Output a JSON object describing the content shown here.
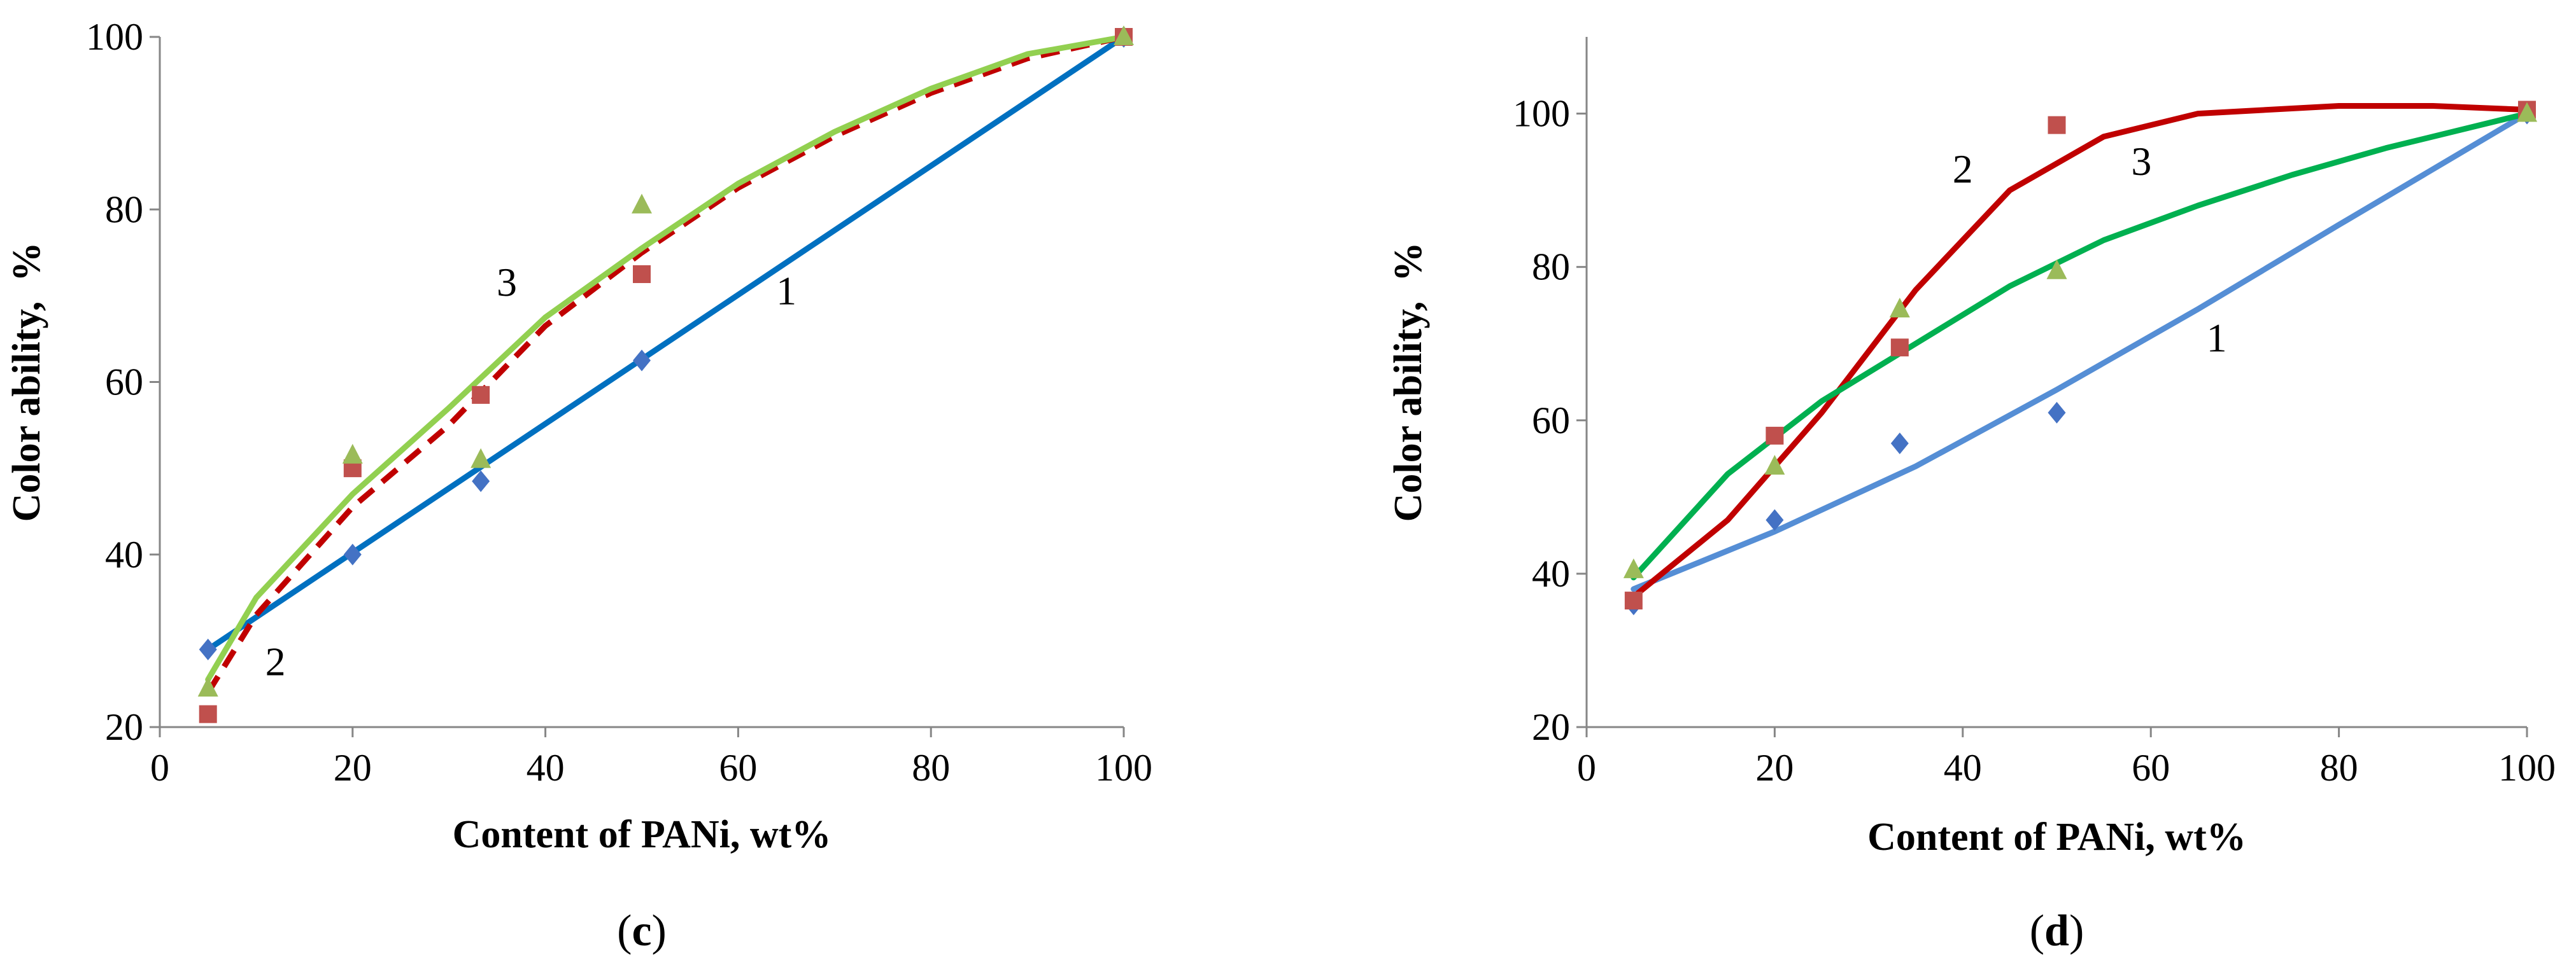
{
  "chart_data": [
    {
      "type": "scatter",
      "panel": "(c)",
      "caption_open": "(",
      "caption_letter": "c",
      "caption_close": ")",
      "xlabel": "Content of PANi, wt%",
      "ylabel": "Color ability,  %",
      "xlim": [
        0,
        100
      ],
      "ylim": [
        20,
        100
      ],
      "xticks": [
        0,
        20,
        40,
        60,
        80,
        100
      ],
      "yticks": [
        20,
        40,
        60,
        80,
        100
      ],
      "grid": false,
      "series": [
        {
          "name": "1",
          "marker": "diamond",
          "color": "#4472c4",
          "trend_color": "#0070c0",
          "trend_style": "solid",
          "points": [
            [
              5,
              29
            ],
            [
              20,
              40
            ],
            [
              33.3,
              48.5
            ],
            [
              50,
              62.5
            ],
            [
              100,
              100
            ]
          ],
          "trend": [
            [
              5,
              29
            ],
            [
              100,
              100
            ]
          ],
          "label": "1",
          "label_at": [
            65,
            69
          ]
        },
        {
          "name": "2",
          "marker": "square",
          "color": "#c0504d",
          "trend_color": "#c00000",
          "trend_style": "dashed",
          "points": [
            [
              5,
              21.5
            ],
            [
              20,
              50
            ],
            [
              33.3,
              58.5
            ],
            [
              50,
              72.5
            ],
            [
              100,
              100
            ]
          ],
          "trend": [
            [
              5,
              24
            ],
            [
              10,
              33
            ],
            [
              20,
              45.5
            ],
            [
              30,
              55
            ],
            [
              40,
              66.5
            ],
            [
              50,
              75
            ],
            [
              60,
              82.5
            ],
            [
              70,
              88.5
            ],
            [
              80,
              93.5
            ],
            [
              90,
              97.5
            ],
            [
              100,
              100
            ]
          ],
          "label": "2",
          "label_at": [
            12,
            26
          ]
        },
        {
          "name": "3",
          "marker": "triangle",
          "color": "#9bbb59",
          "trend_color": "#92d050",
          "trend_style": "solid",
          "points": [
            [
              5,
              24.5
            ],
            [
              20,
              51.5
            ],
            [
              33.3,
              51
            ],
            [
              50,
              80.5
            ],
            [
              100,
              100
            ]
          ],
          "trend": [
            [
              5,
              25.5
            ],
            [
              10,
              35
            ],
            [
              20,
              47
            ],
            [
              30,
              57
            ],
            [
              40,
              67.5
            ],
            [
              50,
              75.5
            ],
            [
              60,
              83
            ],
            [
              70,
              89
            ],
            [
              80,
              94
            ],
            [
              90,
              98
            ],
            [
              100,
              100
            ]
          ],
          "label": "3",
          "label_at": [
            36,
            70
          ]
        }
      ]
    },
    {
      "type": "scatter",
      "panel": "(d)",
      "caption_open": "(",
      "caption_letter": "d",
      "caption_close": ")",
      "xlabel": "Content of PANi, wt%",
      "ylabel": "Color ability,  %",
      "xlim": [
        0,
        100
      ],
      "ylim": [
        20,
        110
      ],
      "xticks": [
        0,
        20,
        40,
        60,
        80,
        100
      ],
      "yticks": [
        20,
        40,
        60,
        80,
        100
      ],
      "grid": false,
      "series": [
        {
          "name": "1",
          "marker": "diamond",
          "color": "#4472c4",
          "trend_color": "#558ed5",
          "trend_style": "solid",
          "points": [
            [
              5,
              36
            ],
            [
              20,
              47
            ],
            [
              33.3,
              57
            ],
            [
              50,
              61
            ],
            [
              100,
              100
            ]
          ],
          "trend": [
            [
              5,
              38
            ],
            [
              20,
              45.5
            ],
            [
              35,
              54
            ],
            [
              50,
              64
            ],
            [
              65,
              74.5
            ],
            [
              80,
              85.5
            ],
            [
              100,
              100
            ]
          ],
          "label": "1",
          "label_at": [
            67,
            69
          ]
        },
        {
          "name": "2",
          "marker": "square",
          "color": "#c0504d",
          "trend_color": "#c00000",
          "trend_style": "solid",
          "points": [
            [
              5,
              36.5
            ],
            [
              20,
              58
            ],
            [
              33.3,
              69.5
            ],
            [
              50,
              98.5
            ],
            [
              100,
              100.5
            ]
          ],
          "trend": [
            [
              5,
              37
            ],
            [
              15,
              47
            ],
            [
              25,
              61
            ],
            [
              35,
              77
            ],
            [
              45,
              90
            ],
            [
              55,
              97
            ],
            [
              65,
              100
            ],
            [
              80,
              101
            ],
            [
              90,
              101
            ],
            [
              100,
              100.5
            ]
          ],
          "label": "2",
          "label_at": [
            40,
            91
          ]
        },
        {
          "name": "3",
          "marker": "triangle",
          "color": "#9bbb59",
          "trend_color": "#00b050",
          "trend_style": "solid",
          "points": [
            [
              5,
              40.5
            ],
            [
              20,
              54
            ],
            [
              33.3,
              74.5
            ],
            [
              50,
              79.5
            ],
            [
              100,
              100
            ]
          ],
          "trend": [
            [
              5,
              39.5
            ],
            [
              15,
              53
            ],
            [
              25,
              62.5
            ],
            [
              35,
              70
            ],
            [
              45,
              77.5
            ],
            [
              55,
              83.5
            ],
            [
              65,
              88
            ],
            [
              75,
              92
            ],
            [
              85,
              95.5
            ],
            [
              100,
              100
            ]
          ],
          "label": "3",
          "label_at": [
            59,
            92
          ]
        }
      ]
    }
  ]
}
